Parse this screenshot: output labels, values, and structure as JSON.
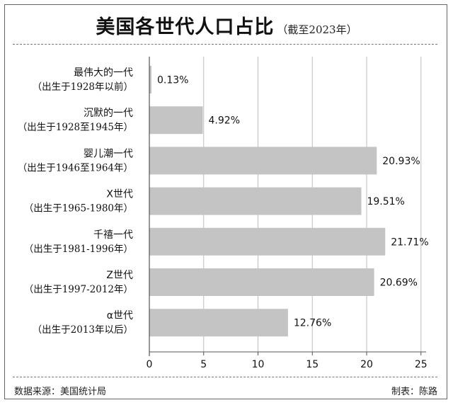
{
  "header": {
    "title": "美国各世代人口占比",
    "subtitle": "（截至2023年）"
  },
  "footer": {
    "source": "数据来源：美国统计局",
    "credit": "制表：陈路"
  },
  "colors": {
    "bar": "#c4c4c4",
    "grid": "#bdbdbd",
    "axis": "#555555"
  },
  "chart_data": {
    "type": "bar",
    "orientation": "horizontal",
    "categories": [
      {
        "name": "最伟大的一代",
        "range": "（出生于1928年以前）"
      },
      {
        "name": "沉默的一代",
        "range": "（出生于1928至1945年）"
      },
      {
        "name": "婴儿潮一代",
        "range": "（出生于1946至1964年）"
      },
      {
        "name": "X世代",
        "range": "（出生于1965-1980年）"
      },
      {
        "name": "千禧一代",
        "range": "（出生于1981-1996年）"
      },
      {
        "name": "Z世代",
        "range": "（出生于1997-2012年）"
      },
      {
        "name": "α世代",
        "range": "（出生于2013年以后）"
      }
    ],
    "values": [
      0.13,
      4.92,
      20.93,
      19.51,
      21.71,
      20.69,
      12.76
    ],
    "value_labels": [
      "0.13%",
      "4.92%",
      "20.93%",
      "19.51%",
      "21.71%",
      "20.69%",
      "12.76%"
    ],
    "x_ticks": [
      0,
      5,
      10,
      15,
      20,
      25
    ],
    "xlim": [
      0,
      27
    ],
    "grid": true
  }
}
